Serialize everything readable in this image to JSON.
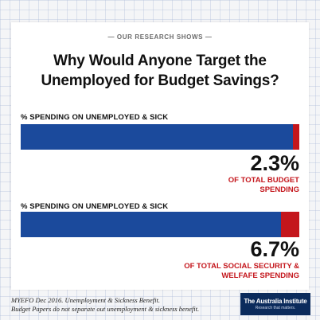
{
  "header": {
    "kicker": "— OUR RESEARCH SHOWS —",
    "title_line1": "Why Would Anyone Target the",
    "title_line2": "Unemployed for Budget Savings?"
  },
  "colors": {
    "primary_bar": "#1b4a9c",
    "highlight_bar": "#c4161c",
    "caption_text": "#c4161c"
  },
  "chart_data": [
    {
      "type": "bar",
      "title": "% SPENDING ON UNEMPLOYED & SICK",
      "value_label": "2.3%",
      "caption_line1": "OF TOTAL BUDGET",
      "caption_line2": "SPENDING",
      "values": [
        97.7,
        2.3
      ],
      "ylim": [
        0,
        100
      ]
    },
    {
      "type": "bar",
      "title": "% SPENDING ON UNEMPLOYED & SICK",
      "value_label": "6.7%",
      "caption_line1": "OF TOTAL SOCIAL SECURITY &",
      "caption_line2": "WELFAFE SPENDING",
      "values": [
        93.3,
        6.7
      ],
      "ylim": [
        0,
        100
      ]
    }
  ],
  "footer": {
    "source_line1": "MYEFO Dec 2016. Unemployment & Sickness Benefit.",
    "source_line2": "Budget Papers do not separate out unemployment & sickness benefit.",
    "logo_name": "The Australia Institute",
    "logo_tagline": "Research that matters."
  }
}
